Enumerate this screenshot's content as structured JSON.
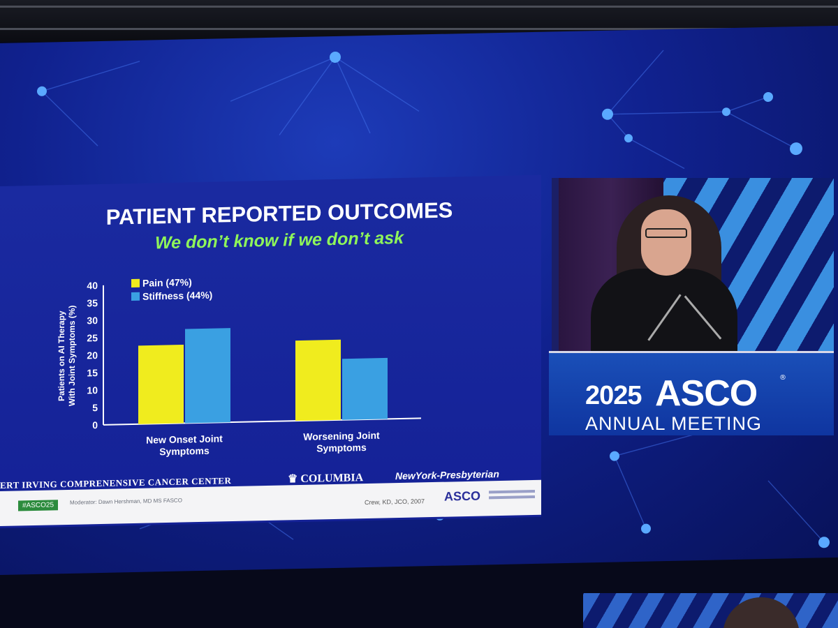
{
  "slide": {
    "title": "PATIENT REPORTED OUTCOMES",
    "subtitle": "We don’t know if we don’t ask",
    "logo_institution": "ERT IRVING COMPRENENSIVE CANCER CENTER",
    "logo_columbia": "COLUMBIA",
    "logo_nyp": "NewYork-Presbyterian",
    "footer": {
      "hashtag": "#ASCO25",
      "moderator": "Moderator: Dawn Hershman, MD MS FASCO",
      "citation": "Crew, KD, JCO, 2007",
      "asco_logo": "ASCO"
    }
  },
  "chart_data": {
    "type": "bar",
    "categories": [
      "New Onset Joint Symptoms",
      "Worsening Joint Symptoms"
    ],
    "category_lines": [
      [
        "New Onset Joint",
        "Symptoms"
      ],
      [
        "Worsening Joint",
        "Symptoms"
      ]
    ],
    "series": [
      {
        "name": "Pain (47%)",
        "values": [
          22.5,
          23
        ],
        "color": "#f0ec1e"
      },
      {
        "name": "Stiffness (44%)",
        "values": [
          27,
          17.5
        ],
        "color": "#3aa0e2"
      }
    ],
    "ylabel_lines": [
      "Patients on AI Therapy",
      "With Joint Symptoms (%)"
    ],
    "ylim": [
      0,
      40
    ],
    "yticks": [
      0,
      5,
      10,
      15,
      20,
      25,
      30,
      35,
      40
    ],
    "legend_position": "top-left",
    "grid": false
  },
  "podium": {
    "year": "2025",
    "brand": "ASCO",
    "registered": "®",
    "meeting": "ANNUAL MEETING"
  },
  "colors": {
    "screen_blue": "#10218e",
    "subtitle_green": "#8ff55a",
    "podium_blue": "#1a4fb8"
  }
}
